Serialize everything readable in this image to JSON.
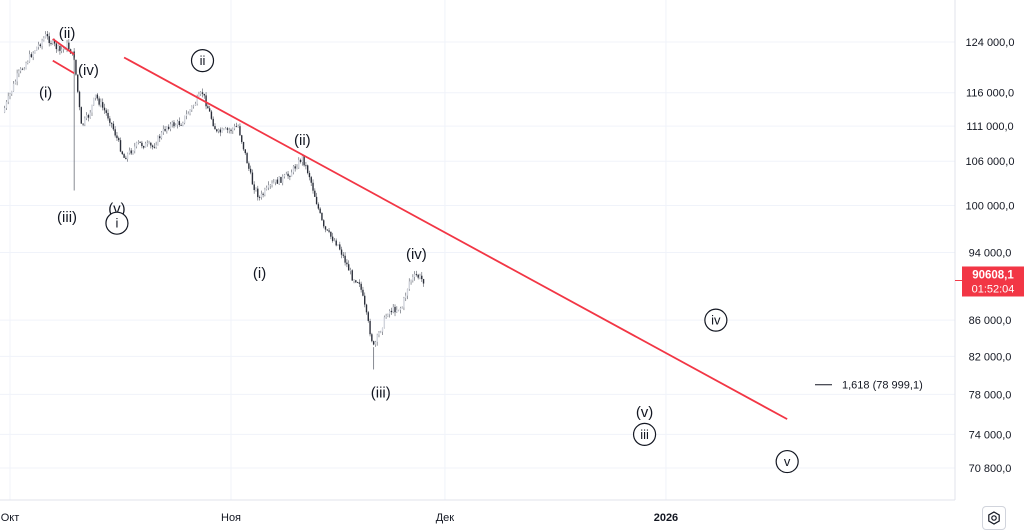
{
  "chart_data": {
    "type": "line",
    "style": "candlestick",
    "price_axis": {
      "scale": "log",
      "ticks": [
        "124 000,0",
        "116 000,0",
        "111 000,0",
        "106 000,0",
        "100 000,0",
        "94 000,0",
        "86 000,0",
        "82 000,0",
        "78 000,0",
        "74 000,0",
        "70 800,0"
      ],
      "tick_values": [
        124000,
        116000,
        111000,
        106000,
        100000,
        94000,
        86000,
        82000,
        78000,
        74000,
        70800
      ]
    },
    "time_axis": {
      "ticks": [
        {
          "label": "Окт",
          "bold": false
        },
        {
          "label": "Ноя",
          "bold": false
        },
        {
          "label": "Дек",
          "bold": false
        },
        {
          "label": "2026",
          "bold": true
        }
      ]
    },
    "price_path": [
      {
        "date": "2025-09-30",
        "price": 113000
      },
      {
        "date": "2025-10-02",
        "price": 118500
      },
      {
        "date": "2025-10-04",
        "price": 122000
      },
      {
        "date": "2025-10-06",
        "price": 125000
      },
      {
        "date": "2025-10-08",
        "price": 122500
      },
      {
        "date": "2025-10-09",
        "price": 123500
      },
      {
        "date": "2025-10-10",
        "price": 121500
      },
      {
        "date": "2025-10-11",
        "price": 111000
      },
      {
        "date": "2025-10-12",
        "price": 112500
      },
      {
        "date": "2025-10-13",
        "price": 115500
      },
      {
        "date": "2025-10-15",
        "price": 112000
      },
      {
        "date": "2025-10-17",
        "price": 106500
      },
      {
        "date": "2025-10-19",
        "price": 108500
      },
      {
        "date": "2025-10-21",
        "price": 108000
      },
      {
        "date": "2025-10-23",
        "price": 111000
      },
      {
        "date": "2025-10-25",
        "price": 111500
      },
      {
        "date": "2025-10-27",
        "price": 114500
      },
      {
        "date": "2025-10-28",
        "price": 116000
      },
      {
        "date": "2025-10-30",
        "price": 110000
      },
      {
        "date": "2025-11-01",
        "price": 110500
      },
      {
        "date": "2025-11-02",
        "price": 111000
      },
      {
        "date": "2025-11-04",
        "price": 103000
      },
      {
        "date": "2025-11-05",
        "price": 101000
      },
      {
        "date": "2025-11-07",
        "price": 103000
      },
      {
        "date": "2025-11-09",
        "price": 104000
      },
      {
        "date": "2025-11-11",
        "price": 106500
      },
      {
        "date": "2025-11-12",
        "price": 104000
      },
      {
        "date": "2025-11-14",
        "price": 97000
      },
      {
        "date": "2025-11-16",
        "price": 95000
      },
      {
        "date": "2025-11-18",
        "price": 91000
      },
      {
        "date": "2025-11-19",
        "price": 90500
      },
      {
        "date": "2025-11-20",
        "price": 86500
      },
      {
        "date": "2025-11-21",
        "price": 83000
      },
      {
        "date": "2025-11-22",
        "price": 85000
      },
      {
        "date": "2025-11-23",
        "price": 87000
      },
      {
        "date": "2025-11-25",
        "price": 87500
      },
      {
        "date": "2025-11-26",
        "price": 90500
      },
      {
        "date": "2025-11-27",
        "price": 91200
      },
      {
        "date": "2025-11-28",
        "price": 90608
      }
    ],
    "wicks": [
      {
        "date": "2025-10-10",
        "low": 102000
      },
      {
        "date": "2025-11-21",
        "low": 80600
      }
    ],
    "trendline": {
      "color": "#f23645",
      "points": [
        {
          "date": "2025-10-17",
          "price": 121500
        },
        {
          "date": "2026-01-18",
          "price": 75500
        }
      ]
    },
    "wedge": {
      "color": "#f23645",
      "upper": [
        {
          "date": "2025-10-07",
          "price": 124500
        },
        {
          "date": "2025-10-10",
          "price": 122000
        }
      ],
      "lower": [
        {
          "date": "2025-10-07",
          "price": 121000
        },
        {
          "date": "2025-10-10",
          "price": 119000
        }
      ]
    },
    "current_price": {
      "value": "90608,1",
      "timer": "01:52:04",
      "color": "#f23645",
      "price": 90608
    },
    "fib_level": {
      "label": "1,618 (78 999,1)",
      "price": 79000
    },
    "wave_labels": [
      {
        "text": "(ii)",
        "circled": false,
        "date": "2025-10-09",
        "price": 125500
      },
      {
        "text": "(i)",
        "circled": false,
        "date": "2025-10-06",
        "price": 116000
      },
      {
        "text": "(iv)",
        "circled": false,
        "date": "2025-10-12",
        "price": 119500
      },
      {
        "text": "(v)",
        "circled": false,
        "date": "2025-10-16",
        "price": 99600
      },
      {
        "text": "i",
        "circled": true,
        "date": "2025-10-16",
        "price": 97700
      },
      {
        "text": "(iii)",
        "circled": false,
        "date": "2025-10-09",
        "price": 98500
      },
      {
        "text": "ii",
        "circled": true,
        "date": "2025-10-28",
        "price": 121000
      },
      {
        "text": "(ii)",
        "circled": false,
        "date": "2025-11-11",
        "price": 109000
      },
      {
        "text": "(i)",
        "circled": false,
        "date": "2025-11-05",
        "price": 91500
      },
      {
        "text": "(iv)",
        "circled": false,
        "date": "2025-11-27",
        "price": 93800
      },
      {
        "text": "(iii)",
        "circled": false,
        "date": "2025-11-22",
        "price": 78200
      },
      {
        "text": "iv",
        "circled": true,
        "date": "2026-01-08",
        "price": 86000
      },
      {
        "text": "(v)",
        "circled": false,
        "date": "2025-12-29",
        "price": 76200
      },
      {
        "text": "iii",
        "circled": true,
        "date": "2025-12-29",
        "price": 74000
      },
      {
        "text": "v",
        "circled": true,
        "date": "2026-01-18",
        "price": 71400
      }
    ]
  },
  "icons": {
    "settings": "settings-gear-icon"
  }
}
